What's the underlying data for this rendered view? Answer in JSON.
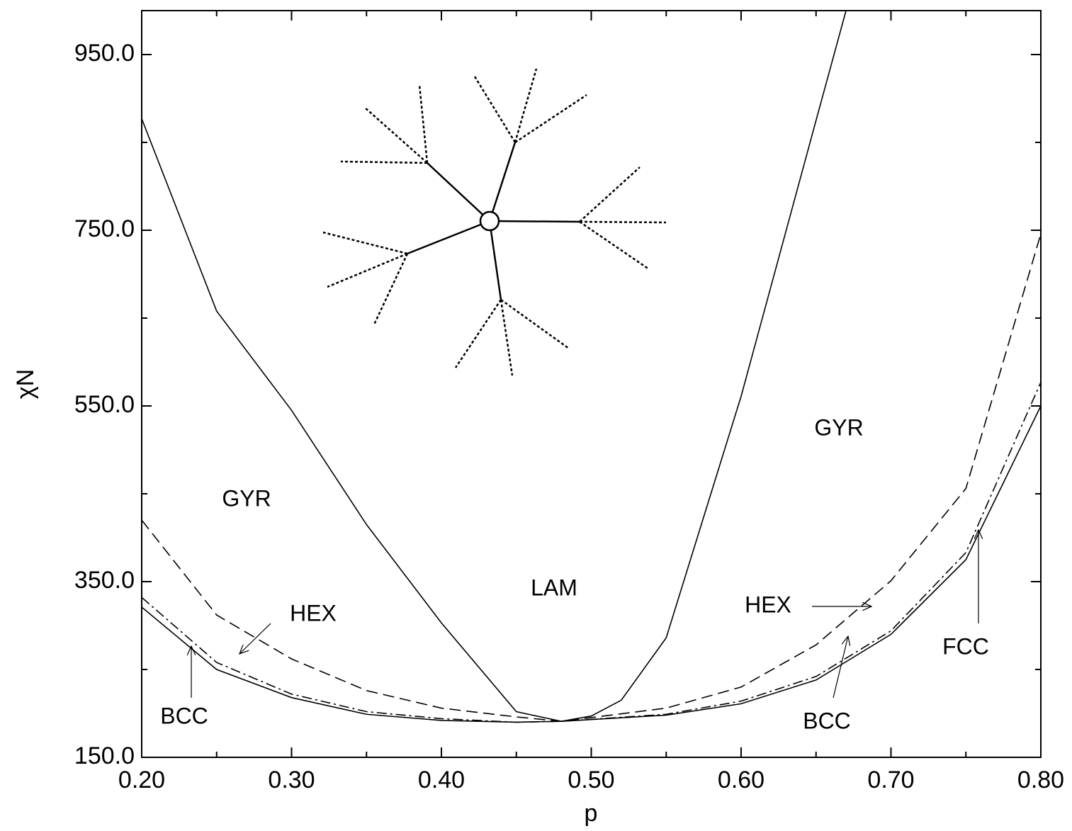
{
  "chart_data": {
    "type": "line",
    "x_label": "p",
    "y_label": "χN",
    "xlim": [
      0.2,
      0.8
    ],
    "ylim": [
      150,
      1000
    ],
    "xticks": [
      {
        "value": 0.2,
        "label": "0.20"
      },
      {
        "value": 0.3,
        "label": "0.30"
      },
      {
        "value": 0.4,
        "label": "0.40"
      },
      {
        "value": 0.5,
        "label": "0.50"
      },
      {
        "value": 0.6,
        "label": "0.60"
      },
      {
        "value": 0.7,
        "label": "0.70"
      },
      {
        "value": 0.8,
        "label": "0.80"
      }
    ],
    "xminorticks": [
      0.25,
      0.35,
      0.45,
      0.55,
      0.65,
      0.75
    ],
    "yticks": [
      {
        "value": 150,
        "label": "150.0"
      },
      {
        "value": 350,
        "label": "350.0"
      },
      {
        "value": 550,
        "label": "550.0"
      },
      {
        "value": 750,
        "label": "750.0"
      },
      {
        "value": 950,
        "label": "950.0"
      }
    ],
    "yminorticks": [
      250,
      450,
      650,
      850
    ],
    "series": [
      {
        "color": "#000000",
        "dash": "solid",
        "x": [
          0.2,
          0.25,
          0.3,
          0.35,
          0.4,
          0.45,
          0.48,
          0.5,
          0.52,
          0.55,
          0.6,
          0.65,
          0.67
        ],
        "values": [
          877,
          658,
          545,
          415,
          303,
          202,
          191,
          197,
          215,
          286,
          561,
          875,
          1000
        ]
      },
      {
        "color": "#000000",
        "dash": "dashed",
        "x": [
          0.2,
          0.25,
          0.3,
          0.35,
          0.4,
          0.45,
          0.48,
          0.55,
          0.6,
          0.65,
          0.7,
          0.75,
          0.8
        ],
        "values": [
          420,
          312,
          262,
          226,
          206,
          196,
          191,
          206,
          230,
          278,
          351,
          456,
          746
        ]
      },
      {
        "color": "#000000",
        "dash": "dashdot",
        "x": [
          0.2,
          0.25,
          0.3,
          0.35,
          0.4,
          0.45,
          0.48,
          0.55,
          0.6,
          0.65,
          0.7,
          0.75,
          0.8
        ],
        "values": [
          332,
          258,
          222,
          202,
          194,
          190,
          191,
          199,
          214,
          242,
          294,
          383,
          577
        ]
      },
      {
        "color": "#000000",
        "dash": "solid",
        "x": [
          0.2,
          0.25,
          0.3,
          0.35,
          0.4,
          0.45,
          0.48,
          0.55,
          0.6,
          0.65,
          0.7,
          0.75,
          0.8
        ],
        "values": [
          321,
          250,
          218,
          199,
          192,
          190,
          191,
          198,
          211,
          238,
          290,
          375,
          550
        ]
      }
    ],
    "annotations": [
      "GYR",
      "GYR",
      "LAM",
      "HEX",
      "HEX",
      "BCC",
      "BCC",
      "FCC"
    ]
  }
}
